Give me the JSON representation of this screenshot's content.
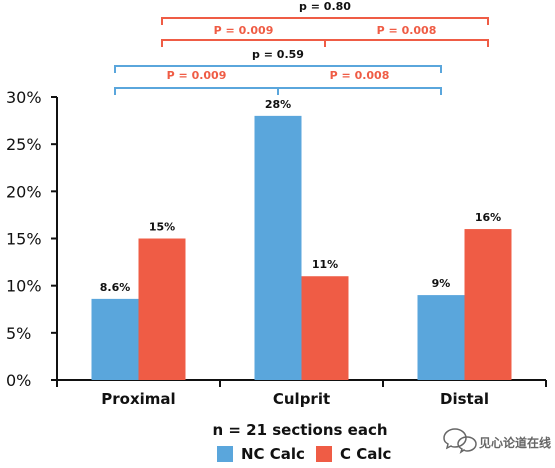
{
  "chart_data": {
    "type": "bar",
    "categories": [
      "Proximal",
      "Culprit",
      "Distal"
    ],
    "series": [
      {
        "name": "NC Calc",
        "values": [
          8.6,
          28,
          9
        ],
        "labels": [
          "8.6%",
          "28%",
          "9%"
        ],
        "color": "#5aa6dc"
      },
      {
        "name": "C Calc",
        "values": [
          15,
          11,
          16
        ],
        "labels": [
          "15%",
          "11%",
          "16%"
        ],
        "color": "#ef5c45"
      }
    ],
    "title": "",
    "xlabel": "",
    "ylabel": "",
    "ylim": [
      0,
      30
    ],
    "yticks": [
      0,
      5,
      10,
      15,
      20,
      25,
      30
    ],
    "yticklabels": [
      "0%",
      "5%",
      "10%",
      "15%",
      "20%",
      "25%",
      "30%"
    ],
    "grid": false,
    "legend_position": "bottom",
    "annotations": {
      "note": "n = 21 sections each",
      "comparisons": [
        {
          "series": "C Calc",
          "from": "Proximal",
          "to": "Distal",
          "label": "p = 0.80",
          "color": "#ef5c45",
          "label_color": "#111111"
        },
        {
          "series": "C Calc",
          "from": "Proximal",
          "to": "Culprit",
          "label": "P = 0.009",
          "color": "#ef5c45",
          "label_color": "#ef5c45"
        },
        {
          "series": "C Calc",
          "from": "Culprit",
          "to": "Distal",
          "label": "P = 0.008",
          "color": "#ef5c45",
          "label_color": "#ef5c45"
        },
        {
          "series": "NC Calc",
          "from": "Proximal",
          "to": "Distal",
          "label": "p = 0.59",
          "color": "#5aa6dc",
          "label_color": "#111111"
        },
        {
          "series": "NC Calc",
          "from": "Proximal",
          "to": "Culprit",
          "label": "P = 0.009",
          "color": "#5aa6dc",
          "label_color": "#ef5c45"
        },
        {
          "series": "NC Calc",
          "from": "Culprit",
          "to": "Distal",
          "label": "P = 0.008",
          "color": "#5aa6dc",
          "label_color": "#ef5c45"
        }
      ]
    }
  },
  "watermark": {
    "text": "见心论道在线",
    "icon": "wechat-chat-bubble-icon"
  }
}
